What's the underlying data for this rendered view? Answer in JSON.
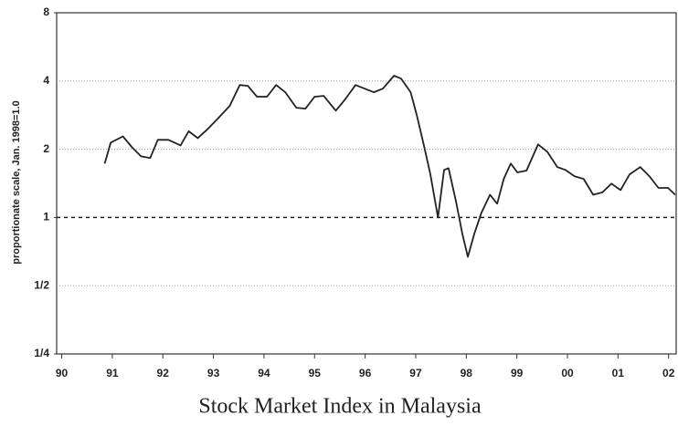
{
  "chart_data": {
    "type": "line",
    "title": "Stock Market Index in Malaysia",
    "y_label": "proportionate scale, Jan. 1998=1.0",
    "yscale": "log",
    "grid": true,
    "reference_line": 1,
    "xlim": [
      1989.9,
      2002.15
    ],
    "xticks": [
      {
        "value": 1990,
        "label": "90"
      },
      {
        "value": 1991,
        "label": "91"
      },
      {
        "value": 1992,
        "label": "92"
      },
      {
        "value": 1993,
        "label": "93"
      },
      {
        "value": 1994,
        "label": "94"
      },
      {
        "value": 1995,
        "label": "95"
      },
      {
        "value": 1996,
        "label": "96"
      },
      {
        "value": 1997,
        "label": "97"
      },
      {
        "value": 1998,
        "label": "98"
      },
      {
        "value": 1999,
        "label": "99"
      },
      {
        "value": 2000,
        "label": "00"
      },
      {
        "value": 2001,
        "label": "01"
      },
      {
        "value": 2002,
        "label": "02"
      }
    ],
    "ylim": [
      0.25,
      8
    ],
    "yticks": [
      {
        "value": 0.25,
        "label": "1/4"
      },
      {
        "value": 0.5,
        "label": "1/2"
      },
      1,
      2,
      4,
      8
    ],
    "series": [
      {
        "color": "#222222",
        "x": [
          1990.85,
          1990.97,
          1991.21,
          1991.39,
          1991.57,
          1991.75,
          1991.9,
          1992.11,
          1992.35,
          1992.51,
          1992.69,
          1992.89,
          1993.1,
          1993.32,
          1993.52,
          1993.68,
          1993.86,
          1994.06,
          1994.24,
          1994.42,
          1994.64,
          1994.82,
          1995.0,
          1995.18,
          1995.42,
          1995.6,
          1995.81,
          1995.99,
          1996.17,
          1996.35,
          1996.57,
          1996.71,
          1996.9,
          1997.02,
          1997.17,
          1997.29,
          1997.44,
          1997.56,
          1997.65,
          1997.8,
          1997.92,
          1998.03,
          1998.16,
          1998.3,
          1998.47,
          1998.61,
          1998.74,
          1998.88,
          1999.01,
          1999.19,
          1999.42,
          1999.6,
          1999.8,
          1999.96,
          2000.14,
          2000.32,
          2000.51,
          2000.69,
          2000.87,
          2001.05,
          2001.23,
          2001.44,
          2001.62,
          2001.8,
          2001.99,
          2002.13
        ],
        "values": [
          1.73,
          2.14,
          2.28,
          2.04,
          1.86,
          1.83,
          2.2,
          2.2,
          2.08,
          2.4,
          2.24,
          2.46,
          2.75,
          3.1,
          3.84,
          3.81,
          3.41,
          3.41,
          3.84,
          3.57,
          3.05,
          3.02,
          3.41,
          3.44,
          2.96,
          3.31,
          3.84,
          3.7,
          3.57,
          3.7,
          4.22,
          4.1,
          3.57,
          2.83,
          2.04,
          1.55,
          1.0,
          1.62,
          1.65,
          1.17,
          0.85,
          0.67,
          0.85,
          1.05,
          1.26,
          1.15,
          1.48,
          1.73,
          1.58,
          1.61,
          2.1,
          1.95,
          1.67,
          1.62,
          1.52,
          1.48,
          1.26,
          1.29,
          1.41,
          1.32,
          1.55,
          1.67,
          1.52,
          1.35,
          1.35,
          1.26
        ]
      }
    ]
  }
}
